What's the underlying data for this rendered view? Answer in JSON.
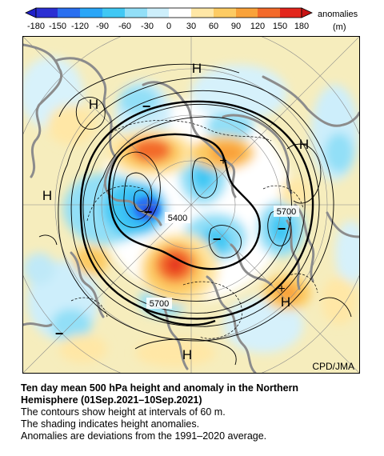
{
  "legend": {
    "ticks": [
      "-180",
      "-150",
      "-120",
      "-90",
      "-60",
      "-30",
      "0",
      "30",
      "60",
      "90",
      "120",
      "150",
      "180"
    ],
    "label": "anomalies",
    "unit": "(m)",
    "colors": [
      "#2b2fd3",
      "#2a6ff0",
      "#2aa6f7",
      "#40c8f4",
      "#92dff7",
      "#cdeffb",
      "#ffffff",
      "#ffffff",
      "#ffe7a6",
      "#fdcb63",
      "#f9a23a",
      "#f36a2a",
      "#e3261c"
    ]
  },
  "map": {
    "highs": [
      "H",
      "H",
      "H",
      "H",
      "H",
      "H"
    ],
    "lows": [
      "−",
      "−",
      "−",
      "−",
      "−"
    ],
    "plus_marks": [
      "+",
      "+"
    ],
    "contour_labels": [
      "5400",
      "5700",
      "5700"
    ],
    "credit": "CPD/JMA"
  },
  "caption": {
    "title_line1": "Ten day mean 500 hPa height and anomaly in the Northern",
    "title_line2": "Hemisphere (01Sep.2021–10Sep.2021)",
    "line3": "The contours show height at intervals of 60 m.",
    "line4": "The shading indicates height anomalies.",
    "line5": "Anomalies are deviations from the 1991–2020 average."
  }
}
